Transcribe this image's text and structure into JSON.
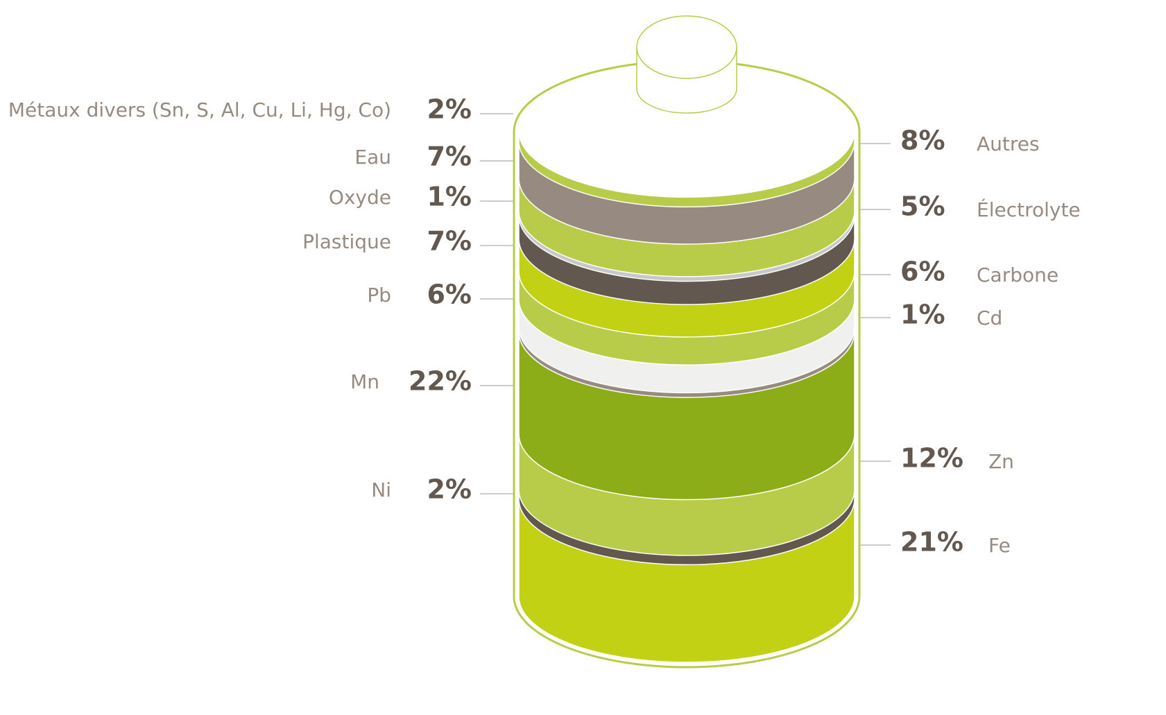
{
  "chart_data": {
    "type": "stacked-cylinder",
    "categories": [
      "Métaux divers (Sn, S, Al, Cu, Li, Hg, Co)",
      "Autres",
      "Eau",
      "Oxyde",
      "Électrolyte",
      "Plastique",
      "Carbone",
      "Pb",
      "Cd",
      "Mn",
      "Zn",
      "Ni",
      "Fe"
    ],
    "values": [
      2,
      8,
      7,
      1,
      5,
      7,
      6,
      6,
      1,
      22,
      12,
      2,
      21
    ],
    "value_labels": [
      "2%",
      "8%",
      "7%",
      "1%",
      "5%",
      "7%",
      "6%",
      "6%",
      "1%",
      "22%",
      "12%",
      "2%",
      "21%"
    ],
    "colors": [
      "#b9cc4a",
      "#978a80",
      "#b9cc4a",
      "#c8c8c8",
      "#625850",
      "#c2d114",
      "#b9cc4a",
      "#f0f0ee",
      "#978a80",
      "#8cad17",
      "#b9cc4a",
      "#625850",
      "#c2d114"
    ]
  }
}
